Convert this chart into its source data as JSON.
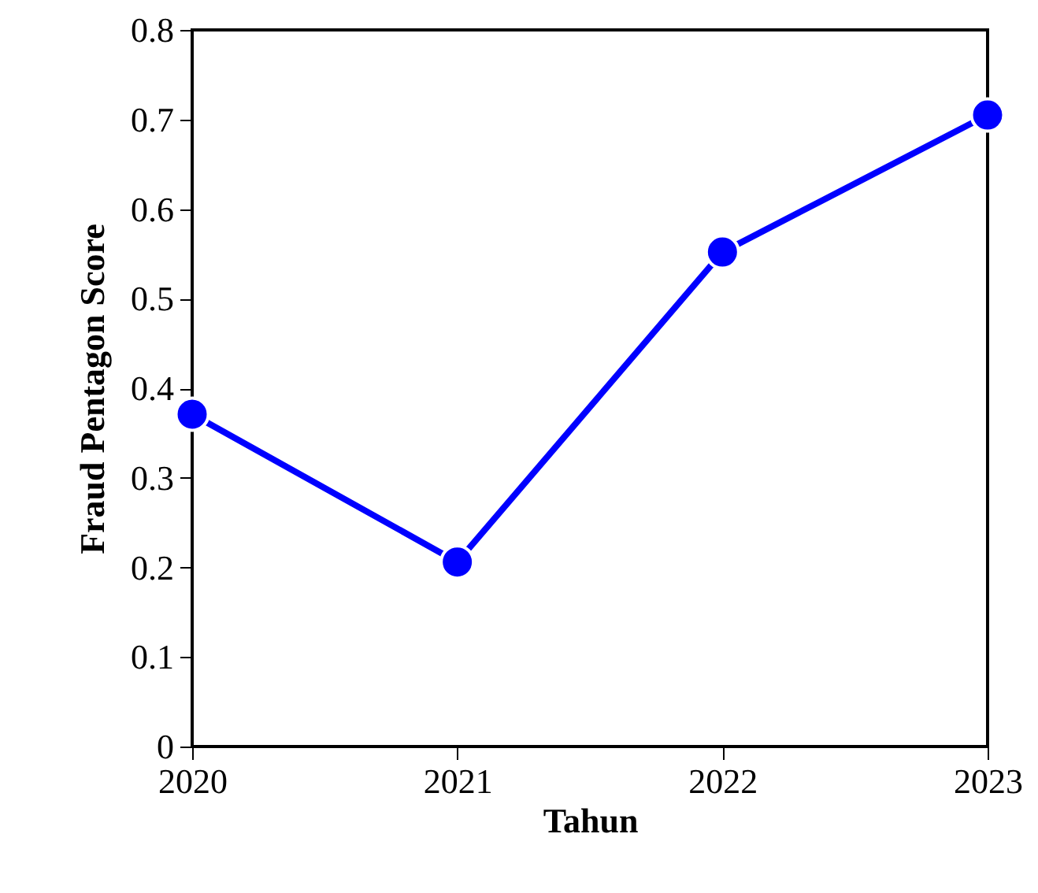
{
  "chart_data": {
    "type": "line",
    "xlabel": "Tahun",
    "ylabel": "Fraud Pentagon Score",
    "x": [
      2020,
      2021,
      2022,
      2023
    ],
    "series": [
      {
        "color": "#0000ff",
        "values": [
          0.371,
          0.206,
          0.552,
          0.705
        ]
      }
    ],
    "xlim": [
      2020,
      2023
    ],
    "xticks": [
      2020,
      2021,
      2022,
      2023
    ],
    "ylim": [
      0,
      0.8
    ],
    "yticks": [
      0,
      0.1,
      0.2,
      0.3,
      0.4,
      0.5,
      0.6,
      0.7,
      0.8
    ],
    "grid": false,
    "marker": "circle",
    "line_style": "solid"
  }
}
